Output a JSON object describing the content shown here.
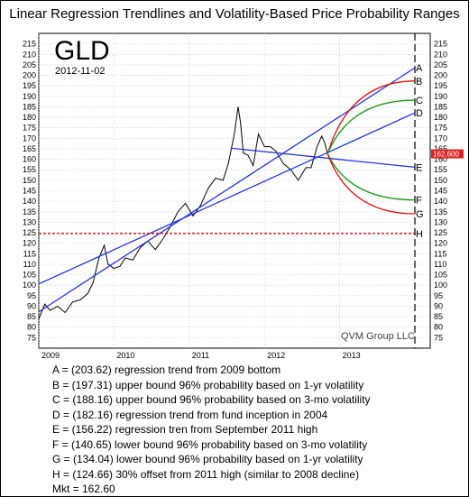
{
  "chart_data": {
    "type": "line",
    "title": "Linear Regression Trendlines and Volatility-Based Price Probability Ranges",
    "symbol": "GLD",
    "date": "2012-11-02",
    "watermark": "QVM Group LLC",
    "ylim": [
      70,
      220
    ],
    "yticks": [
      75,
      80,
      85,
      90,
      95,
      100,
      105,
      110,
      115,
      120,
      125,
      130,
      135,
      140,
      145,
      150,
      155,
      160,
      165,
      170,
      175,
      180,
      185,
      190,
      195,
      200,
      205,
      210,
      215
    ],
    "xlim": [
      2009.0,
      2014.2
    ],
    "xticks": [
      {
        "label": "2009",
        "x": 2009.0
      },
      {
        "label": "2010",
        "x": 2010.0
      },
      {
        "label": "2011",
        "x": 2011.0
      },
      {
        "label": "2012",
        "x": 2012.0
      },
      {
        "label": "2013",
        "x": 2013.0
      }
    ],
    "price_label": "162.600",
    "price": 162.6,
    "projection_end": 2014.0,
    "series": [
      {
        "name": "GLD",
        "color": "#000000",
        "x": [
          2009.0,
          2009.08,
          2009.15,
          2009.25,
          2009.35,
          2009.45,
          2009.55,
          2009.65,
          2009.72,
          2009.8,
          2009.87,
          2009.92,
          2010.0,
          2010.08,
          2010.15,
          2010.25,
          2010.35,
          2010.45,
          2010.55,
          2010.65,
          2010.75,
          2010.85,
          2010.95,
          2011.05,
          2011.15,
          2011.25,
          2011.35,
          2011.45,
          2011.52,
          2011.6,
          2011.65,
          2011.68,
          2011.72,
          2011.78,
          2011.85,
          2011.92,
          2012.0,
          2012.08,
          2012.15,
          2012.25,
          2012.35,
          2012.45,
          2012.55,
          2012.62,
          2012.7,
          2012.76,
          2012.8,
          2012.84
        ],
        "y": [
          84,
          91,
          88,
          90,
          87,
          92,
          93,
          96,
          101,
          113,
          119,
          110,
          108,
          109,
          113,
          112,
          118,
          121,
          117,
          122,
          128,
          135,
          139,
          133,
          138,
          146,
          151,
          150,
          158,
          172,
          185,
          178,
          163,
          162,
          157,
          172,
          166,
          166,
          164,
          158,
          155,
          150,
          156,
          156,
          166,
          171,
          168,
          162.6
        ]
      },
      {
        "name": "",
        "color": "#2233dd",
        "x": [
          2009.0,
          2014.0
        ],
        "y": [
          87.3,
          203.62
        ]
      },
      {
        "name": "",
        "color": "#2233dd",
        "x": [
          2009.0,
          2014.0
        ],
        "y": [
          100.6,
          182.16
        ]
      },
      {
        "name": "",
        "color": "#2233dd",
        "x": [
          2011.55,
          2014.0
        ],
        "y": [
          165.3,
          156.22
        ]
      },
      {
        "name": "",
        "color": "#dd1111",
        "x": [
          2012.84,
          2014.0
        ],
        "y": [
          162.6,
          197.31
        ]
      },
      {
        "name": "",
        "color": "#119911",
        "x": [
          2012.84,
          2014.0
        ],
        "y": [
          162.6,
          188.16
        ]
      },
      {
        "name": "",
        "color": "#119911",
        "x": [
          2012.84,
          2014.0
        ],
        "y": [
          162.6,
          140.65
        ]
      },
      {
        "name": "",
        "color": "#dd1111",
        "x": [
          2012.84,
          2014.0
        ],
        "y": [
          162.6,
          134.04
        ]
      },
      {
        "name": "",
        "color": "#cc1111",
        "x": [
          2009.0,
          2014.0
        ],
        "y": [
          124.66,
          124.66
        ]
      }
    ],
    "markers": [
      {
        "letter": "A",
        "value": 203.62
      },
      {
        "letter": "B",
        "value": 197.31
      },
      {
        "letter": "C",
        "value": 188.16
      },
      {
        "letter": "D",
        "value": 182.16
      },
      {
        "letter": "E",
        "value": 156.22
      },
      {
        "letter": "F",
        "value": 140.65
      },
      {
        "letter": "G",
        "value": 134.04
      },
      {
        "letter": "H",
        "value": 124.66
      }
    ],
    "legend": [
      "A = (203.62) regression trend from 2009 bottom",
      "B = (197.31) upper bound 96% probability based on 1-yr volatility",
      "C = (188.16) upper bound 96% probability based on 3-mo volatility",
      "D = (182.16) regression trend from fund inception in 2004",
      "E = (156.22) regression tren from September 2011 high",
      "F = (140.65) lower bound 96% probability based on 3-mo volatility",
      "G = (134.04) lower bound 96% probability based on 1-yr volatility",
      "H = (124.66) 30% offset from 2011 high (similar to 2008 decline)",
      "Mkt = 162.60"
    ]
  }
}
